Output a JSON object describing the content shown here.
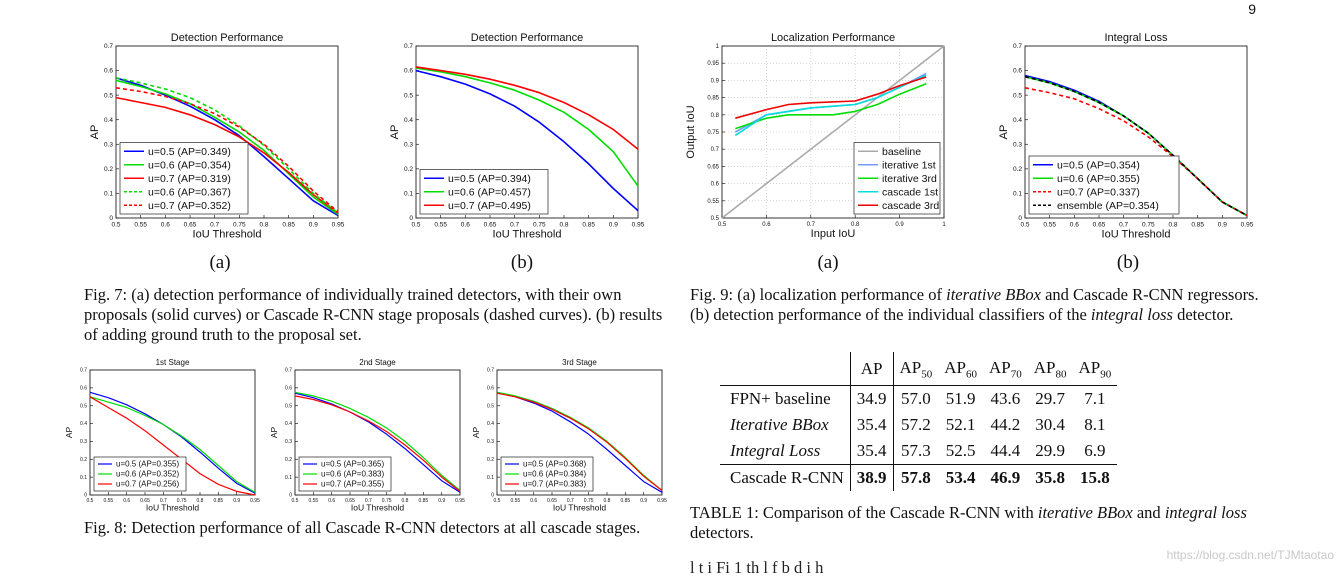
{
  "page_number": "9",
  "fig7": {
    "sub_a": "(a)",
    "sub_b": "(b)",
    "caption": "Fig. 7: (a) detection performance of individually trained detectors, with their own proposals (solid curves) or Cascade R-CNN stage proposals (dashed curves). (b) results of adding ground truth to the proposal set."
  },
  "fig8": {
    "caption": "Fig. 8: Detection performance of all Cascade R-CNN detectors at all cascade stages."
  },
  "fig9": {
    "sub_a": "(a)",
    "sub_b": "(b)",
    "caption_parts": [
      "Fig. 9: (a) localization performance of ",
      "iterative BBox",
      " and Cascade R-CNN regressors. (b) detection performance of the individual classifiers of the ",
      "integral loss",
      " detector."
    ]
  },
  "table1": {
    "headers": [
      "AP",
      "AP",
      "AP",
      "AP",
      "AP",
      "AP"
    ],
    "header_subs": [
      "",
      "50",
      "60",
      "70",
      "80",
      "90"
    ],
    "rows": [
      {
        "name": "FPN+ baseline",
        "italic": false,
        "values": [
          "34.9",
          "57.0",
          "51.9",
          "43.6",
          "29.7",
          "7.1"
        ]
      },
      {
        "name": "Iterative BBox",
        "italic": true,
        "values": [
          "35.4",
          "57.2",
          "52.1",
          "44.2",
          "30.4",
          "8.1"
        ]
      },
      {
        "name": "Integral Loss",
        "italic": true,
        "values": [
          "35.4",
          "57.3",
          "52.5",
          "44.4",
          "29.9",
          "6.9"
        ]
      },
      {
        "name": "Cascade R-CNN",
        "italic": false,
        "values": [
          "38.9",
          "57.8",
          "53.4",
          "46.9",
          "35.8",
          "15.8"
        ]
      }
    ],
    "caption_parts": [
      "TABLE 1: Comparison of the Cascade R-CNN with ",
      "iterative BBox",
      " and ",
      "integral loss",
      " detectors."
    ]
  },
  "watermark": "https://blog.csdn.net/TJMtaotao",
  "bottom_text": "l                     t      i  Fi    1  th        l       f b       d         i h",
  "chart_data": [
    {
      "id": "fig7a",
      "type": "line",
      "title": "Detection Performance",
      "xlabel": "IoU Threshold",
      "ylabel": "AP",
      "xlim": [
        0.5,
        0.95
      ],
      "ylim": [
        0,
        0.7
      ],
      "xticks": [
        "0.5",
        "0.55",
        "0.6",
        "0.65",
        "0.7",
        "0.75",
        "0.8",
        "0.85",
        "0.9",
        "0.95"
      ],
      "yticks": [
        "0",
        "0.1",
        "0.2",
        "0.3",
        "0.4",
        "0.5",
        "0.6",
        "0.7"
      ],
      "x": [
        0.5,
        0.55,
        0.6,
        0.65,
        0.7,
        0.75,
        0.8,
        0.85,
        0.9,
        0.95
      ],
      "legend_position": "bottom-left",
      "series": [
        {
          "name": "u=0.5 (AP=0.349)",
          "color": "#0000ff",
          "dashed": false,
          "values": [
            0.57,
            0.54,
            0.5,
            0.455,
            0.4,
            0.335,
            0.25,
            0.16,
            0.07,
            0.01
          ]
        },
        {
          "name": "u=0.6 (AP=0.354)",
          "color": "#00dd00",
          "dashed": false,
          "values": [
            0.56,
            0.535,
            0.505,
            0.465,
            0.41,
            0.35,
            0.275,
            0.18,
            0.085,
            0.015
          ]
        },
        {
          "name": "u=0.7 (AP=0.319)",
          "color": "#ff0000",
          "dashed": false,
          "values": [
            0.49,
            0.47,
            0.45,
            0.42,
            0.38,
            0.33,
            0.265,
            0.185,
            0.095,
            0.02
          ]
        },
        {
          "name": "u=0.6 (AP=0.367)",
          "color": "#00dd00",
          "dashed": true,
          "values": [
            0.57,
            0.55,
            0.525,
            0.49,
            0.44,
            0.375,
            0.295,
            0.2,
            0.1,
            0.02
          ]
        },
        {
          "name": "u=0.7 (AP=0.352)",
          "color": "#ff0000",
          "dashed": true,
          "values": [
            0.53,
            0.515,
            0.495,
            0.465,
            0.425,
            0.37,
            0.3,
            0.21,
            0.11,
            0.025
          ]
        }
      ]
    },
    {
      "id": "fig7b",
      "type": "line",
      "title": "Detection Performance",
      "xlabel": "IoU Threshold",
      "ylabel": "AP",
      "xlim": [
        0.5,
        0.95
      ],
      "ylim": [
        0,
        0.7
      ],
      "xticks": [
        "0.5",
        "0.55",
        "0.6",
        "0.65",
        "0.7",
        "0.75",
        "0.8",
        "0.85",
        "0.9",
        "0.95"
      ],
      "yticks": [
        "0",
        "0.1",
        "0.2",
        "0.3",
        "0.4",
        "0.5",
        "0.6",
        "0.7"
      ],
      "x": [
        0.5,
        0.55,
        0.6,
        0.65,
        0.7,
        0.75,
        0.8,
        0.85,
        0.9,
        0.95
      ],
      "legend_position": "bottom-left",
      "series": [
        {
          "name": "u=0.5 (AP=0.394)",
          "color": "#0000ff",
          "dashed": false,
          "values": [
            0.6,
            0.575,
            0.545,
            0.505,
            0.455,
            0.39,
            0.31,
            0.22,
            0.12,
            0.03
          ]
        },
        {
          "name": "u=0.6 (AP=0.457)",
          "color": "#00dd00",
          "dashed": false,
          "values": [
            0.61,
            0.595,
            0.575,
            0.55,
            0.52,
            0.48,
            0.43,
            0.36,
            0.27,
            0.13
          ]
        },
        {
          "name": "u=0.7 (AP=0.495)",
          "color": "#ff0000",
          "dashed": false,
          "values": [
            0.615,
            0.6,
            0.585,
            0.565,
            0.54,
            0.51,
            0.47,
            0.42,
            0.36,
            0.28
          ]
        }
      ]
    },
    {
      "id": "fig8-1",
      "type": "line",
      "title": "1st Stage",
      "xlabel": "IoU Threshold",
      "ylabel": "AP",
      "xlim": [
        0.5,
        0.95
      ],
      "ylim": [
        0,
        0.7
      ],
      "xticks": [
        "0.5",
        "0.55",
        "0.6",
        "0.65",
        "0.7",
        "0.75",
        "0.8",
        "0.85",
        "0.9",
        "0.95"
      ],
      "yticks": [
        "0",
        "0.1",
        "0.2",
        "0.3",
        "0.4",
        "0.5",
        "0.6",
        "0.7"
      ],
      "x": [
        0.5,
        0.55,
        0.6,
        0.65,
        0.7,
        0.75,
        0.8,
        0.85,
        0.9,
        0.95
      ],
      "legend_position": "bottom-left",
      "series": [
        {
          "name": "u=0.5 (AP=0.355)",
          "color": "#0000ff",
          "dashed": false,
          "values": [
            0.575,
            0.545,
            0.505,
            0.455,
            0.395,
            0.325,
            0.24,
            0.15,
            0.065,
            0.01
          ]
        },
        {
          "name": "u=0.6 (AP=0.352)",
          "color": "#00dd00",
          "dashed": false,
          "values": [
            0.55,
            0.52,
            0.49,
            0.445,
            0.395,
            0.33,
            0.255,
            0.165,
            0.075,
            0.015
          ]
        },
        {
          "name": "u=0.7 (AP=0.256)",
          "color": "#ff0000",
          "dashed": false,
          "values": [
            0.55,
            0.49,
            0.43,
            0.36,
            0.28,
            0.2,
            0.12,
            0.06,
            0.02,
            0.0
          ]
        }
      ]
    },
    {
      "id": "fig8-2",
      "type": "line",
      "title": "2nd Stage",
      "xlabel": "IoU Threshold",
      "ylabel": "AP",
      "xlim": [
        0.5,
        0.95
      ],
      "ylim": [
        0,
        0.7
      ],
      "xticks": [
        "0.5",
        "0.55",
        "0.6",
        "0.65",
        "0.7",
        "0.75",
        "0.8",
        "0.85",
        "0.9",
        "0.95"
      ],
      "yticks": [
        "0",
        "0.1",
        "0.2",
        "0.3",
        "0.4",
        "0.5",
        "0.6",
        "0.7"
      ],
      "x": [
        0.5,
        0.55,
        0.6,
        0.65,
        0.7,
        0.75,
        0.8,
        0.85,
        0.9,
        0.95
      ],
      "legend_position": "bottom-left",
      "series": [
        {
          "name": "u=0.5 (AP=0.365)",
          "color": "#0000ff",
          "dashed": false,
          "values": [
            0.57,
            0.545,
            0.51,
            0.465,
            0.41,
            0.34,
            0.26,
            0.17,
            0.08,
            0.015
          ]
        },
        {
          "name": "u=0.6 (AP=0.383)",
          "color": "#00dd00",
          "dashed": false,
          "values": [
            0.575,
            0.555,
            0.525,
            0.485,
            0.435,
            0.375,
            0.3,
            0.21,
            0.11,
            0.025
          ]
        },
        {
          "name": "u=0.7 (AP=0.355)",
          "color": "#ff0000",
          "dashed": false,
          "values": [
            0.555,
            0.535,
            0.505,
            0.465,
            0.415,
            0.355,
            0.28,
            0.195,
            0.1,
            0.02
          ]
        }
      ]
    },
    {
      "id": "fig8-3",
      "type": "line",
      "title": "3rd Stage",
      "xlabel": "IoU Threshold",
      "ylabel": "AP",
      "xlim": [
        0.5,
        0.95
      ],
      "ylim": [
        0,
        0.7
      ],
      "xticks": [
        "0.5",
        "0.55",
        "0.6",
        "0.65",
        "0.7",
        "0.75",
        "0.8",
        "0.85",
        "0.9",
        "0.95"
      ],
      "yticks": [
        "0",
        "0.1",
        "0.2",
        "0.3",
        "0.4",
        "0.5",
        "0.6",
        "0.7"
      ],
      "x": [
        0.5,
        0.55,
        0.6,
        0.65,
        0.7,
        0.75,
        0.8,
        0.85,
        0.9,
        0.95
      ],
      "legend_position": "bottom-left",
      "series": [
        {
          "name": "u=0.5 (AP=0.368)",
          "color": "#0000ff",
          "dashed": false,
          "values": [
            0.575,
            0.55,
            0.515,
            0.47,
            0.41,
            0.34,
            0.255,
            0.165,
            0.075,
            0.015
          ]
        },
        {
          "name": "u=0.6 (AP=0.384)",
          "color": "#00dd00",
          "dashed": false,
          "values": [
            0.575,
            0.555,
            0.525,
            0.485,
            0.435,
            0.375,
            0.3,
            0.21,
            0.11,
            0.025
          ]
        },
        {
          "name": "u=0.7 (AP=0.383)",
          "color": "#ff0000",
          "dashed": false,
          "values": [
            0.57,
            0.55,
            0.52,
            0.48,
            0.43,
            0.37,
            0.295,
            0.205,
            0.105,
            0.025
          ]
        }
      ]
    },
    {
      "id": "fig9a",
      "type": "line",
      "title": "Localization Performance",
      "xlabel": "Input IoU",
      "ylabel": "Output IoU",
      "xlim": [
        0.5,
        1
      ],
      "ylim": [
        0.5,
        1
      ],
      "xticks": [
        "0.5",
        "0.6",
        "0.7",
        "0.8",
        "0.9",
        "1"
      ],
      "yticks": [
        "0.5",
        "0.55",
        "0.6",
        "0.65",
        "0.7",
        "0.75",
        "0.8",
        "0.85",
        "0.9",
        "0.95",
        "1"
      ],
      "legend_position": "bottom-right",
      "series": [
        {
          "name": "baseline",
          "color": "#aaaaaa",
          "dashed": false,
          "x": [
            0.5,
            1.0
          ],
          "values": [
            0.5,
            1.0
          ]
        },
        {
          "name": "iterative 1st",
          "color": "#7799ff",
          "dashed": false,
          "x": [
            0.53,
            0.6,
            0.7,
            0.8,
            0.85,
            0.9,
            0.96
          ],
          "values": [
            0.75,
            0.8,
            0.82,
            0.83,
            0.85,
            0.88,
            0.92
          ]
        },
        {
          "name": "iterative 3rd",
          "color": "#00dd00",
          "dashed": false,
          "x": [
            0.53,
            0.6,
            0.65,
            0.7,
            0.75,
            0.8,
            0.85,
            0.9,
            0.96
          ],
          "values": [
            0.76,
            0.79,
            0.8,
            0.8,
            0.8,
            0.81,
            0.83,
            0.86,
            0.89
          ]
        },
        {
          "name": "cascade 1st",
          "color": "#00dddd",
          "dashed": false,
          "x": [
            0.53,
            0.6,
            0.7,
            0.8,
            0.85,
            0.9,
            0.96
          ],
          "values": [
            0.74,
            0.8,
            0.82,
            0.83,
            0.85,
            0.88,
            0.915
          ]
        },
        {
          "name": "cascade 3rd",
          "color": "#ee0000",
          "dashed": false,
          "x": [
            0.53,
            0.6,
            0.65,
            0.7,
            0.8,
            0.85,
            0.9,
            0.96
          ],
          "values": [
            0.79,
            0.815,
            0.83,
            0.835,
            0.84,
            0.86,
            0.885,
            0.91
          ]
        }
      ]
    },
    {
      "id": "fig9b",
      "type": "line",
      "title": "Integral Loss",
      "xlabel": "IoU Threshold",
      "ylabel": "AP",
      "xlim": [
        0.5,
        0.95
      ],
      "ylim": [
        0,
        0.7
      ],
      "xticks": [
        "0.5",
        "0.55",
        "0.6",
        "0.65",
        "0.7",
        "0.75",
        "0.8",
        "0.85",
        "0.9",
        "0.95"
      ],
      "yticks": [
        "0",
        "0.1",
        "0.2",
        "0.3",
        "0.4",
        "0.5",
        "0.6",
        "0.7"
      ],
      "x": [
        0.5,
        0.55,
        0.6,
        0.65,
        0.7,
        0.75,
        0.8,
        0.85,
        0.9,
        0.95
      ],
      "legend_position": "bottom-left",
      "series": [
        {
          "name": "u=0.5 (AP=0.354)",
          "color": "#0000ff",
          "dashed": false,
          "values": [
            0.58,
            0.555,
            0.52,
            0.475,
            0.415,
            0.345,
            0.255,
            0.16,
            0.065,
            0.01
          ]
        },
        {
          "name": "u=0.6 (AP=0.355)",
          "color": "#00dd00",
          "dashed": false,
          "values": [
            0.575,
            0.55,
            0.515,
            0.47,
            0.415,
            0.345,
            0.255,
            0.16,
            0.065,
            0.01
          ]
        },
        {
          "name": "u=0.7 (AP=0.337)",
          "color": "#ff0000",
          "dashed": true,
          "values": [
            0.53,
            0.51,
            0.485,
            0.445,
            0.395,
            0.33,
            0.25,
            0.16,
            0.065,
            0.01
          ]
        },
        {
          "name": "ensemble (AP=0.354)",
          "color": "#000000",
          "dashed": true,
          "values": [
            0.575,
            0.55,
            0.515,
            0.47,
            0.415,
            0.345,
            0.255,
            0.16,
            0.065,
            0.01
          ]
        }
      ]
    }
  ]
}
